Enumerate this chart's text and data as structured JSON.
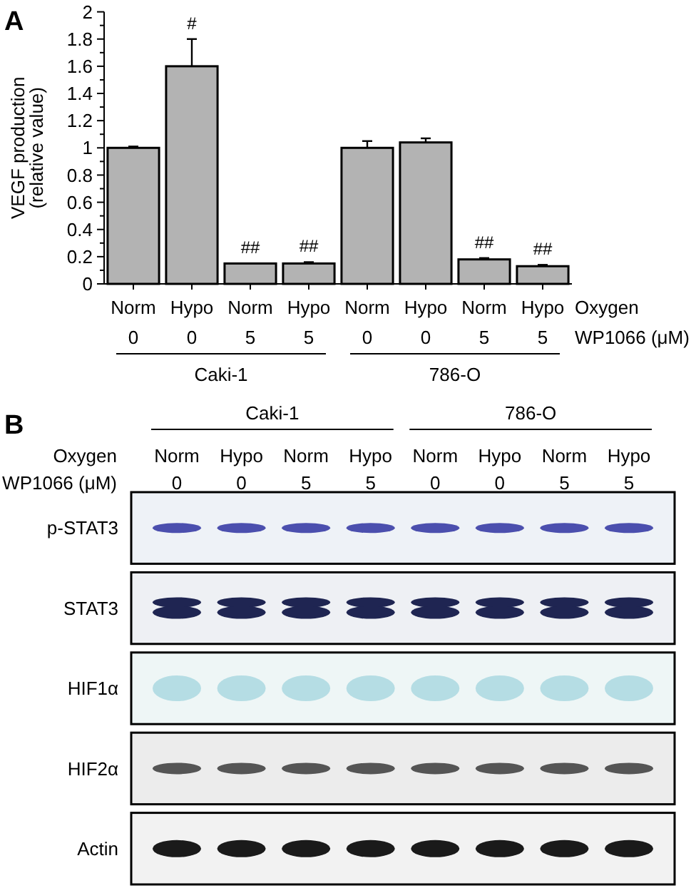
{
  "chart_data": [
    {
      "type": "bar",
      "title": "A",
      "ylabel": "VEGF production\n(relative value)",
      "categories": [
        "Norm",
        "Hypo",
        "Norm",
        "Hypo",
        "Norm",
        "Hypo",
        "Norm",
        "Hypo"
      ],
      "values": [
        1.0,
        1.6,
        0.15,
        0.15,
        1.0,
        1.04,
        0.18,
        0.13
      ],
      "errors": [
        0.01,
        0.2,
        null,
        0.01,
        0.05,
        0.03,
        0.01,
        0.01
      ],
      "value_labels": [
        null,
        "#",
        "##",
        "##",
        null,
        null,
        "##",
        "##"
      ],
      "color": "#b3b3b3",
      "ylim": [
        0,
        2
      ],
      "yticks": [
        0,
        {
          "value": 0.1,
          "label": null
        },
        0.2,
        {
          "value": 0.3,
          "label": null
        },
        0.4,
        {
          "value": 0.5,
          "label": null
        },
        0.6,
        {
          "value": 0.7,
          "label": null
        },
        0.8,
        {
          "value": 0.9,
          "label": null
        },
        1,
        {
          "value": 1.1,
          "label": null
        },
        1.2,
        {
          "value": 1.3,
          "label": null
        },
        1.4,
        {
          "value": 1.5,
          "label": null
        },
        1.6,
        {
          "value": 1.7,
          "label": null
        },
        1.8,
        {
          "value": 1.9,
          "label": null
        },
        2
      ],
      "annotations": [
        "Oxygen",
        "WP1066 (μM)",
        "0",
        "0",
        "5",
        "5",
        "0",
        "0",
        "5",
        "5",
        "Caki-1",
        "786-O"
      ]
    },
    {
      "type": "other",
      "title": "B",
      "categories": [
        "Norm",
        "Hypo",
        "Norm",
        "Hypo",
        "Norm",
        "Hypo",
        "Norm",
        "Hypo"
      ],
      "y_categories": [
        "p-STAT3",
        "STAT3",
        "HIF1α",
        "HIF2α",
        "Actin"
      ],
      "annotations": [
        "Oxygen",
        "WP1066 (μM)",
        "0",
        "0",
        "5",
        "5",
        "0",
        "0",
        "5",
        "5",
        "Caki-1",
        "786-O"
      ]
    }
  ]
}
